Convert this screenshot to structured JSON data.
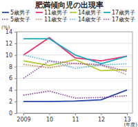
{
  "chart_data": {
    "type": "line",
    "title": "肥満傾向児の出現率",
    "y_label": "(%)",
    "x_label": "(年度)",
    "categories": [
      "2009",
      "10",
      "11",
      "12",
      "13"
    ],
    "ylim": [
      0,
      14
    ],
    "yticks": [
      0,
      2,
      4,
      6,
      8,
      10,
      12,
      14
    ],
    "grid": true,
    "legend": "top",
    "series": [
      {
        "name": "5歳男子",
        "color": "#2a46a8",
        "line_style": "solid",
        "values": [
          2.0,
          2.0,
          2.1,
          2.3,
          4.0
        ]
      },
      {
        "name": "5歳女子",
        "color": "#8a3fa0",
        "line_style": "dotted",
        "values": [
          3.1,
          3.8,
          2.6,
          2.7,
          3.0
        ]
      },
      {
        "name": "11歳男子",
        "color": "#e8336d",
        "line_style": "solid",
        "values": [
          10.0,
          13.0,
          9.5,
          9.0,
          9.8
        ]
      },
      {
        "name": "11歳女子",
        "color": "#c08040",
        "line_style": "dotted",
        "values": [
          8.4,
          7.8,
          8.6,
          8.3,
          6.6
        ]
      },
      {
        "name": "14歳男子",
        "color": "#b5c830",
        "line_style": "solid",
        "values": [
          9.0,
          8.2,
          9.2,
          7.3,
          7.5
        ]
      },
      {
        "name": "14歳女子",
        "color": "#4fb3d9",
        "line_style": "dotted",
        "values": [
          10.0,
          9.0,
          7.7,
          8.3,
          8.5
        ]
      },
      {
        "name": "17歳男子",
        "color": "#1fa8c8",
        "line_style": "solid",
        "values": [
          12.8,
          12.8,
          10.0,
          8.5,
          9.8
        ]
      },
      {
        "name": "17歳女子",
        "color": "#9b4fb0",
        "line_style": "dotted",
        "values": [
          6.0,
          9.0,
          8.5,
          8.3,
          7.2
        ]
      }
    ]
  }
}
